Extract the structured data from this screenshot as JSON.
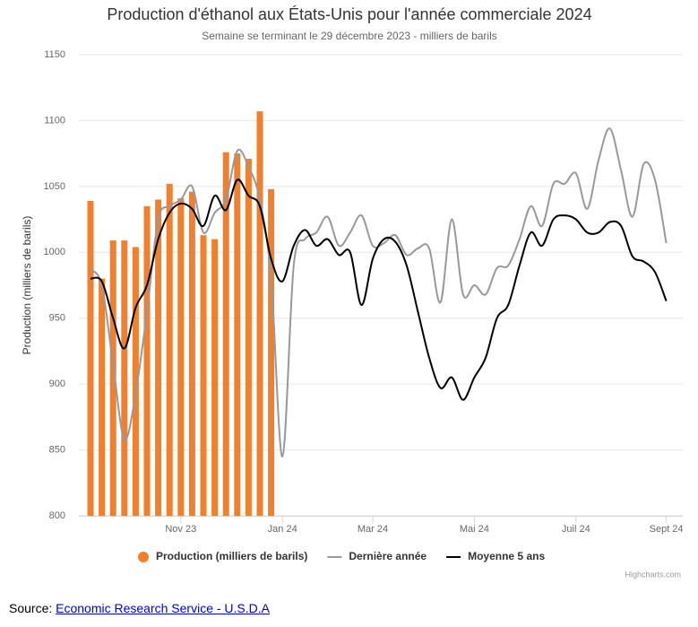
{
  "chart_data": {
    "type": "combo",
    "title": "Production d'éthanol aux États-Unis pour l'année commerciale 2024",
    "subtitle": "Semaine se terminant le 29 décembre 2023 - milliers de barils",
    "y_label": "Production (milliers de barils)",
    "categories": [
      null,
      null,
      null,
      null,
      null,
      null,
      null,
      null,
      "Nov 23",
      null,
      null,
      null,
      null,
      null,
      null,
      null,
      null,
      "Jan 24",
      null,
      null,
      null,
      null,
      null,
      null,
      null,
      "Mar 24",
      null,
      null,
      null,
      null,
      null,
      null,
      null,
      null,
      "Mai 24",
      null,
      null,
      null,
      null,
      null,
      null,
      null,
      null,
      "Juil 24",
      null,
      null,
      null,
      null,
      null,
      null,
      null,
      "Sept 24"
    ],
    "ylim": [
      800,
      1150
    ],
    "yticks": [
      800,
      850,
      900,
      950,
      1000,
      1050,
      1100,
      1150
    ],
    "grid": true,
    "series": [
      {
        "name": "Production (milliers de barils)",
        "type": "column",
        "color": "#f07f2e",
        "values": [
          1039,
          980,
          1009,
          1009,
          1004,
          1035,
          1040,
          1052,
          1041,
          1046,
          1013,
          1010,
          1076,
          1075,
          1071,
          1107,
          1048,
          null,
          null,
          null,
          null,
          null,
          null,
          null,
          null,
          null,
          null,
          null,
          null,
          null,
          null,
          null,
          null,
          null,
          null,
          null,
          null,
          null,
          null,
          null,
          null,
          null,
          null,
          null,
          null,
          null,
          null,
          null,
          null,
          null,
          null,
          null
        ]
      },
      {
        "name": "Dernière année",
        "type": "spline",
        "color": "#999999",
        "values": [
          987,
          975,
          915,
          858,
          893,
          955,
          1025,
          1035,
          1040,
          1050,
          1015,
          1030,
          1040,
          1077,
          1065,
          1040,
          980,
          845,
          990,
          1010,
          1015,
          1027,
          1005,
          1015,
          1028,
          1005,
          1007,
          1013,
          998,
          1003,
          1003,
          962,
          1025,
          968,
          975,
          968,
          988,
          990,
          1010,
          1035,
          1020,
          1052,
          1052,
          1060,
          1033,
          1070,
          1094,
          1062,
          1027,
          1067,
          1055,
          1007
        ]
      },
      {
        "name": "Moyenne 5 ans",
        "type": "spline",
        "color": "#000000",
        "values": [
          980,
          978,
          950,
          927,
          958,
          975,
          1010,
          1030,
          1037,
          1033,
          1020,
          1043,
          1032,
          1055,
          1043,
          1035,
          995,
          978,
          1005,
          1017,
          1005,
          1010,
          998,
          1000,
          960,
          995,
          1010,
          1008,
          990,
          955,
          920,
          897,
          905,
          888,
          905,
          920,
          950,
          960,
          990,
          1015,
          1005,
          1025,
          1028,
          1025,
          1015,
          1015,
          1023,
          1020,
          997,
          993,
          985,
          963
        ]
      }
    ],
    "credits": "Highcharts.com"
  },
  "source": {
    "label": "Source:",
    "link": "Economic Research Service - U.S.D.A"
  }
}
